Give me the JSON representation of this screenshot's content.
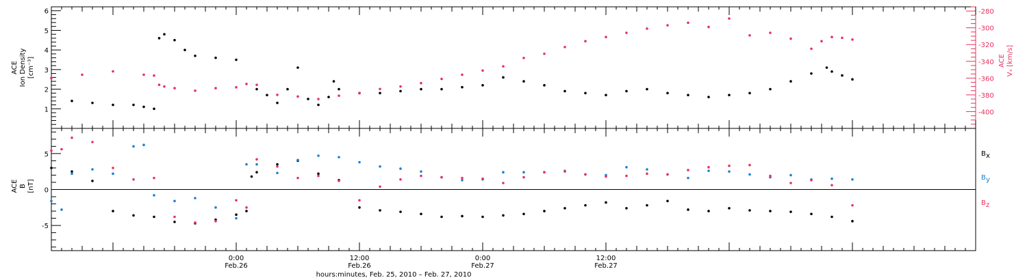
{
  "colors": {
    "density": "#000000",
    "vx": "#e8305f",
    "bx": "#000000",
    "by": "#1a7fd4",
    "bz": "#e8305f",
    "axis": "#000000"
  },
  "chart_data": [
    {
      "type": "scatter",
      "panel": "ace-density-velocity",
      "ylabel_lines": [
        "ACE",
        "Ion Density",
        "[cm⁻³]"
      ],
      "ylim": [
        0,
        6.2
      ],
      "yticks": [
        "1",
        "2",
        "3",
        "4",
        "5",
        "6"
      ],
      "y2label_lines": [
        "ACE",
        "Vₓ [km/s]"
      ],
      "y2lim": [
        -420,
        -275
      ],
      "y2ticks": [
        "-280",
        "-300",
        "-320",
        "-340",
        "-360",
        "-380",
        "-400"
      ],
      "xlim_hours": [
        -18,
        72
      ],
      "series": [
        {
          "color": "#000000",
          "x": [
            -16,
            -14,
            -12,
            -10,
            -9,
            -8,
            -7.5,
            -7,
            -6,
            -5,
            -4,
            -2,
            0,
            2,
            3,
            4,
            5,
            6,
            7,
            8,
            9,
            9.5,
            10,
            12,
            14,
            16,
            18,
            20,
            22,
            24,
            26,
            28,
            30,
            32,
            34,
            36,
            38,
            40,
            42,
            44,
            46,
            48,
            50,
            52,
            54,
            56,
            57.5,
            58,
            59,
            60
          ],
          "y": [
            1.4,
            1.3,
            1.2,
            1.2,
            1.1,
            1.0,
            4.6,
            4.8,
            4.5,
            4.0,
            3.7,
            3.6,
            3.5,
            2.0,
            1.7,
            1.3,
            2.0,
            3.1,
            1.5,
            1.2,
            1.6,
            2.4,
            2.0,
            1.8,
            1.8,
            1.9,
            2.0,
            2.0,
            2.1,
            2.2,
            2.6,
            2.4,
            2.2,
            1.9,
            1.8,
            1.7,
            1.9,
            2.0,
            1.8,
            1.7,
            1.6,
            1.7,
            1.8,
            2.0,
            2.4,
            2.8,
            3.1,
            2.9,
            2.7,
            2.5
          ]
        },
        {
          "color": "#e8305f",
          "x": [
            -18,
            -15,
            -12,
            -9,
            -8,
            -7.5,
            -7,
            -6,
            -4,
            -2,
            0,
            1,
            2,
            4,
            6,
            8,
            10,
            12,
            14,
            16,
            18,
            20,
            22,
            24,
            26,
            28,
            30,
            32,
            34,
            36,
            38,
            40,
            42,
            44,
            46,
            48,
            50,
            52,
            54,
            56,
            57,
            58,
            59,
            60
          ],
          "y": [
            -360,
            -356,
            -352,
            -356,
            -357,
            -368,
            -370,
            -372,
            -375,
            -372,
            -371,
            -367,
            -368,
            -380,
            -382,
            -385,
            -381,
            -378,
            -373,
            -370,
            -366,
            -361,
            -356,
            -351,
            -346,
            -336,
            -331,
            -323,
            -316,
            -311,
            -306,
            -301,
            -297,
            -294,
            -299,
            -289,
            -309,
            -306,
            -313,
            -325,
            -316,
            -311,
            -312,
            -314
          ]
        }
      ]
    },
    {
      "type": "scatter",
      "panel": "ace-b-components",
      "ylabel_lines": [
        "ACE",
        "B",
        "[nT]"
      ],
      "ylim": [
        -8.5,
        8.5
      ],
      "yticks": [
        "5",
        "0",
        "-5"
      ],
      "xlim_hours": [
        -18,
        72
      ],
      "xticks": [
        {
          "hour": 0,
          "line1": "0:00",
          "line2": "Feb.26"
        },
        {
          "hour": 12,
          "line1": "12:00",
          "line2": "Feb.26"
        },
        {
          "hour": 24,
          "line1": "0:00",
          "line2": "Feb.27"
        },
        {
          "hour": 36,
          "line1": "12:00",
          "line2": "Feb.27"
        }
      ],
      "xlabel": "hours:minutes, Feb. 25, 2010 – Feb. 27, 2010",
      "series": [
        {
          "name": "Bx",
          "color": "#000000",
          "x": [
            -18,
            -16,
            -14,
            -12,
            -10,
            -8,
            -6,
            -4,
            -2,
            0,
            1,
            1.5,
            2,
            4,
            6,
            8,
            10,
            12,
            14,
            16,
            18,
            20,
            22,
            24,
            26,
            28,
            30,
            32,
            34,
            36,
            38,
            40,
            42,
            44,
            46,
            48,
            50,
            52,
            54,
            56,
            58,
            60
          ],
          "y": [
            3,
            2.5,
            1.2,
            -3,
            -3.6,
            -3.8,
            -4.5,
            -4.7,
            -4.2,
            -3.5,
            -3,
            1.8,
            2.4,
            3.5,
            4,
            2.2,
            1.3,
            -2.5,
            -2.9,
            -3.1,
            -3.4,
            -3.8,
            -3.7,
            -3.8,
            -3.6,
            -3.4,
            -3.0,
            -2.6,
            -2.2,
            -1.8,
            -2.6,
            -2.2,
            -1.6,
            -2.8,
            -3.0,
            -2.6,
            -2.9,
            -3.0,
            -3.1,
            -3.4,
            -3.8,
            -4.4
          ]
        },
        {
          "name": "By",
          "color": "#1a7fd4",
          "x": [
            -18,
            -17,
            -16,
            -14,
            -12,
            -10,
            -9,
            -8,
            -6,
            -4,
            -2,
            0,
            1,
            2,
            4,
            6,
            8,
            10,
            12,
            14,
            16,
            18,
            20,
            22,
            24,
            26,
            28,
            30,
            32,
            34,
            36,
            38,
            40,
            42,
            44,
            46,
            48,
            50,
            52,
            54,
            56,
            58,
            60
          ],
          "y": [
            -1.6,
            -2.8,
            2.2,
            2.8,
            2.2,
            6,
            6.2,
            -0.8,
            -1.6,
            -1.2,
            -2.5,
            -4,
            3.5,
            3.5,
            2.3,
            4.1,
            4.7,
            4.5,
            3.8,
            3.2,
            2.9,
            2.5,
            1.7,
            1.3,
            1.4,
            2.4,
            2.4,
            2.4,
            2.6,
            2.1,
            2.0,
            3.1,
            2.8,
            2.1,
            1.6,
            2.6,
            2.5,
            2.1,
            1.7,
            2.0,
            1.4,
            1.5,
            1.4
          ]
        },
        {
          "name": "Bz",
          "color": "#e8305f",
          "x": [
            -18,
            -17,
            -16,
            -14,
            -12,
            -10,
            -8,
            -6,
            -4,
            -2,
            0,
            1,
            2,
            4,
            6,
            8,
            10,
            12,
            14,
            16,
            18,
            20,
            22,
            24,
            26,
            28,
            30,
            32,
            34,
            36,
            38,
            40,
            42,
            44,
            46,
            48,
            50,
            52,
            54,
            56,
            58,
            60
          ],
          "y": [
            5.4,
            5.6,
            7.2,
            6.6,
            3.0,
            1.4,
            1.6,
            -3.8,
            -4.6,
            -4.4,
            -1.5,
            -2.5,
            4.2,
            3.2,
            1.6,
            1.9,
            1.2,
            -1.5,
            0.4,
            1.4,
            1.9,
            1.7,
            1.6,
            1.5,
            0.9,
            1.7,
            2.4,
            2.5,
            2.1,
            1.8,
            1.9,
            2.2,
            2.1,
            2.7,
            3.1,
            3.3,
            3.4,
            1.9,
            0.9,
            1.3,
            0.6,
            -2.2
          ]
        }
      ],
      "legend": [
        {
          "label": "B",
          "sub": "x"
        },
        {
          "label": "B",
          "sub": "y"
        },
        {
          "label": "B",
          "sub": "z"
        }
      ]
    }
  ]
}
